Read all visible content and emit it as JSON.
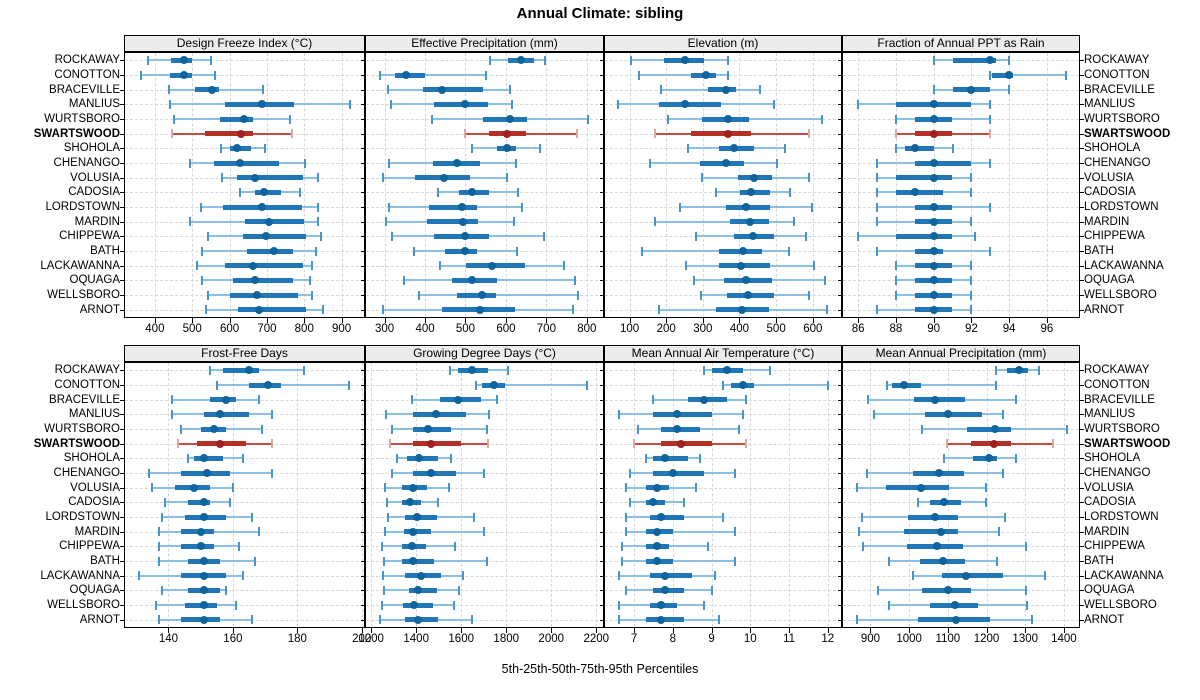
{
  "title": "Annual Climate: sibling",
  "caption": "5th-25th-50th-75th-95th Percentiles",
  "highlight_station": "SWARTSWOOD",
  "stations": [
    "ROCKAWAY",
    "CONOTTON",
    "BRACEVILLE",
    "MANLIUS",
    "WURTSBORO",
    "SWARTSWOOD",
    "SHOHOLA",
    "CHENANGO",
    "VOLUSIA",
    "CADOSIA",
    "LORDSTOWN",
    "MARDIN",
    "CHIPPEWA",
    "BATH",
    "LACKAWANNA",
    "OQUAGA",
    "WELLSBORO",
    "ARNOT"
  ],
  "colors": {
    "blue_whisker": "#8bc0e4",
    "blue_cap": "#4596cd",
    "blue_box": "#2176b5",
    "blue_dot": "#0f639f",
    "red_whisker": "#c44d42",
    "red_cap": "#dda89f",
    "red_box": "#b23127",
    "red_dot": "#a32020",
    "grid": "#d7d7d7",
    "header_bg": "#ececec",
    "border": "#000000"
  },
  "chart_data": [
    {
      "type": "dotplot-percentiles",
      "title": "Design Freeze Index (°C)",
      "percentiles": [
        5,
        25,
        50,
        75,
        95
      ],
      "domain": [
        320,
        960
      ],
      "ticks": [
        400,
        500,
        600,
        700,
        800,
        900
      ],
      "values": [
        [
          382,
          442,
          477,
          500,
          551
        ],
        [
          362,
          440,
          477,
          500,
          562
        ],
        [
          438,
          507,
          553,
          573,
          689
        ],
        [
          440,
          587,
          687,
          773,
          922
        ],
        [
          452,
          575,
          638,
          664,
          762
        ],
        [
          447,
          535,
          631,
          662,
          767
        ],
        [
          578,
          602,
          620,
          658,
          695
        ],
        [
          493,
          558,
          627,
          732,
          803
        ],
        [
          580,
          620,
          667,
          796,
          836
        ],
        [
          627,
          667,
          691,
          738,
          788
        ],
        [
          524,
          582,
          687,
          795,
          838
        ],
        [
          493,
          640,
          705,
          800,
          838
        ],
        [
          542,
          636,
          698,
          804,
          844
        ],
        [
          527,
          646,
          720,
          769,
          831
        ],
        [
          513,
          587,
          662,
          796,
          820
        ],
        [
          527,
          609,
          667,
          769,
          815
        ],
        [
          542,
          602,
          674,
          782,
          820
        ],
        [
          536,
          622,
          680,
          804,
          849
        ]
      ]
    },
    {
      "type": "dotplot-percentiles",
      "title": "Effective Precipitation (mm)",
      "percentiles": [
        5,
        25,
        50,
        75,
        95
      ],
      "domain": [
        254,
        840
      ],
      "ticks": [
        300,
        400,
        500,
        600,
        700,
        800
      ],
      "values": [
        [
          560,
          605,
          638,
          670,
          697
        ],
        [
          288,
          326,
          353,
          400,
          551
        ],
        [
          309,
          395,
          441,
          543,
          611
        ],
        [
          315,
          422,
          498,
          556,
          615
        ],
        [
          418,
          543,
          609,
          652,
          803
        ],
        [
          498,
          557,
          603,
          650,
          776
        ],
        [
          516,
          578,
          603,
          625,
          685
        ],
        [
          312,
          419,
          479,
          537,
          625
        ],
        [
          296,
          376,
          448,
          512,
          603
        ],
        [
          433,
          483,
          516,
          559,
          631
        ],
        [
          310,
          411,
          491,
          529,
          639
        ],
        [
          304,
          405,
          493,
          532,
          619
        ],
        [
          318,
          422,
          499,
          557,
          693
        ],
        [
          372,
          450,
          498,
          529,
          627
        ],
        [
          438,
          502,
          565,
          647,
          744
        ],
        [
          348,
          466,
          516,
          578,
          771
        ],
        [
          384,
          479,
          540,
          576,
          779
        ],
        [
          296,
          442,
          535,
          623,
          767
        ]
      ]
    },
    {
      "type": "dotplot-percentiles",
      "title": "Elevation (m)",
      "percentiles": [
        5,
        25,
        50,
        75,
        95
      ],
      "domain": [
        33,
        677
      ],
      "ticks": [
        100,
        200,
        300,
        400,
        500,
        600
      ],
      "values": [
        [
          105,
          193,
          252,
          302,
          368
        ],
        [
          127,
          268,
          308,
          335,
          368
        ],
        [
          187,
          314,
          362,
          390,
          456
        ],
        [
          69,
          181,
          252,
          350,
          495
        ],
        [
          205,
          299,
          370,
          426,
          625
        ],
        [
          169,
          268,
          368,
          431,
          589
        ],
        [
          259,
          344,
          386,
          440,
          525
        ],
        [
          157,
          293,
          362,
          413,
          501
        ],
        [
          299,
          395,
          440,
          489,
          589
        ],
        [
          335,
          401,
          431,
          483,
          537
        ],
        [
          238,
          362,
          419,
          483,
          598
        ],
        [
          169,
          374,
          428,
          480,
          549
        ],
        [
          281,
          386,
          438,
          495,
          582
        ],
        [
          133,
          344,
          410,
          462,
          534
        ],
        [
          254,
          344,
          404,
          483,
          603
        ],
        [
          275,
          359,
          417,
          489,
          634
        ],
        [
          296,
          365,
          422,
          495,
          591
        ],
        [
          181,
          335,
          408,
          480,
          639
        ]
      ]
    },
    {
      "type": "dotplot-percentiles",
      "title": "Fraction of Annual PPT as Rain",
      "percentiles": [
        5,
        25,
        50,
        75,
        95
      ],
      "domain": [
        85.2,
        97.7
      ],
      "ticks": [
        86,
        88,
        90,
        92,
        94,
        96
      ],
      "values": [
        [
          90,
          91,
          93,
          93.3,
          94
        ],
        [
          93,
          93.1,
          94,
          94.2,
          97
        ],
        [
          90,
          91,
          92,
          93,
          94
        ],
        [
          86,
          88,
          90,
          92,
          93
        ],
        [
          88,
          89,
          90,
          91,
          93
        ],
        [
          88,
          89,
          90,
          91,
          93
        ],
        [
          88,
          88.5,
          89,
          90,
          91
        ],
        [
          87,
          89,
          90,
          92,
          93
        ],
        [
          87,
          88,
          90,
          91,
          92
        ],
        [
          87,
          88,
          89,
          90.5,
          92
        ],
        [
          87,
          89,
          90,
          91,
          93
        ],
        [
          87,
          89,
          90,
          91,
          92
        ],
        [
          86,
          88,
          90,
          91,
          92.2
        ],
        [
          87,
          89,
          90,
          90.5,
          93
        ],
        [
          88,
          89,
          90,
          91,
          92
        ],
        [
          88,
          89,
          90,
          91,
          92
        ],
        [
          88,
          89,
          90,
          91,
          92
        ],
        [
          87,
          89,
          90,
          91,
          92
        ]
      ]
    },
    {
      "type": "dotplot-percentiles",
      "title": "Frost-Free Days",
      "percentiles": [
        5,
        25,
        50,
        75,
        95
      ],
      "domain": [
        126.5,
        200.7
      ],
      "ticks": [
        140,
        160,
        180,
        200
      ],
      "values": [
        [
          153,
          157,
          165,
          168,
          182
        ],
        [
          155,
          165,
          171,
          175,
          196
        ],
        [
          141,
          153,
          158,
          161,
          168
        ],
        [
          141,
          151,
          156,
          165,
          172
        ],
        [
          144,
          150,
          154,
          158,
          169
        ],
        [
          143,
          149,
          156,
          164,
          172
        ],
        [
          146,
          148,
          151,
          157,
          163
        ],
        [
          134,
          144,
          152,
          159,
          172
        ],
        [
          135,
          142,
          148,
          153,
          160
        ],
        [
          139,
          146,
          151,
          153,
          159
        ],
        [
          138,
          145,
          151,
          158,
          166
        ],
        [
          137,
          144,
          150,
          154,
          168
        ],
        [
          137,
          144,
          150,
          154,
          162
        ],
        [
          137,
          146,
          151,
          156,
          167
        ],
        [
          131,
          144,
          151,
          158,
          163
        ],
        [
          138,
          146,
          151,
          156,
          158
        ],
        [
          136,
          145,
          151,
          155,
          161
        ],
        [
          137,
          144,
          151,
          156,
          166
        ]
      ]
    },
    {
      "type": "dotplot-percentiles",
      "title": "Growing Degree Days (°C)",
      "percentiles": [
        5,
        25,
        50,
        75,
        95
      ],
      "domain": [
        1177,
        2230
      ],
      "ticks": [
        1200,
        1400,
        1600,
        1800,
        2000,
        2200
      ],
      "values": [
        [
          1552,
          1585,
          1650,
          1717,
          1808
        ],
        [
          1664,
          1694,
          1747,
          1796,
          2157
        ],
        [
          1380,
          1508,
          1585,
          1688,
          1761
        ],
        [
          1266,
          1386,
          1489,
          1620,
          1723
        ],
        [
          1292,
          1386,
          1453,
          1556,
          1713
        ],
        [
          1284,
          1386,
          1464,
          1600,
          1720
        ],
        [
          1313,
          1361,
          1412,
          1497,
          1556
        ],
        [
          1292,
          1386,
          1468,
          1577,
          1703
        ],
        [
          1263,
          1336,
          1386,
          1449,
          1547
        ],
        [
          1269,
          1336,
          1371,
          1420,
          1497
        ],
        [
          1273,
          1351,
          1405,
          1493,
          1659
        ],
        [
          1263,
          1347,
          1386,
          1468,
          1703
        ],
        [
          1248,
          1336,
          1380,
          1445,
          1574
        ],
        [
          1259,
          1339,
          1386,
          1478,
          1713
        ],
        [
          1254,
          1351,
          1420,
          1512,
          1610
        ],
        [
          1259,
          1366,
          1410,
          1493,
          1591
        ],
        [
          1248,
          1342,
          1390,
          1474,
          1566
        ],
        [
          1237,
          1351,
          1410,
          1497,
          1647
        ]
      ]
    },
    {
      "type": "dotplot-percentiles",
      "title": "Mean Annual Air Temperature (°C)",
      "percentiles": [
        5,
        25,
        50,
        75,
        95
      ],
      "domain": [
        6.25,
        12.34
      ],
      "ticks": [
        7,
        8,
        9,
        10,
        11,
        12
      ],
      "values": [
        [
          8.8,
          9.0,
          9.4,
          9.8,
          10.5
        ],
        [
          9.3,
          9.5,
          9.8,
          10.1,
          12.0
        ],
        [
          7.5,
          8.4,
          8.8,
          9.4,
          9.9
        ],
        [
          6.6,
          7.5,
          8.1,
          9.0,
          9.8
        ],
        [
          7.1,
          7.7,
          8.1,
          8.7,
          9.7
        ],
        [
          7.0,
          7.7,
          8.2,
          9.0,
          9.9
        ],
        [
          7.3,
          7.5,
          7.8,
          8.4,
          8.7
        ],
        [
          6.9,
          7.5,
          8.0,
          8.8,
          9.6
        ],
        [
          6.8,
          7.3,
          7.6,
          7.9,
          8.6
        ],
        [
          6.9,
          7.3,
          7.5,
          7.8,
          8.3
        ],
        [
          6.8,
          7.4,
          7.7,
          8.3,
          9.3
        ],
        [
          6.8,
          7.3,
          7.6,
          8.0,
          9.6
        ],
        [
          6.7,
          7.3,
          7.6,
          7.9,
          8.9
        ],
        [
          6.7,
          7.3,
          7.6,
          8.0,
          9.6
        ],
        [
          6.6,
          7.4,
          7.8,
          8.5,
          9.1
        ],
        [
          6.8,
          7.5,
          7.8,
          8.3,
          9.0
        ],
        [
          6.6,
          7.4,
          7.7,
          8.1,
          8.8
        ],
        [
          6.6,
          7.3,
          7.7,
          8.3,
          9.2
        ]
      ]
    },
    {
      "type": "dotplot-percentiles",
      "title": "Mean Annual Precipitation (mm)",
      "percentiles": [
        5,
        25,
        50,
        75,
        95
      ],
      "domain": [
        829,
        1439
      ],
      "ticks": [
        900,
        1000,
        1100,
        1200,
        1300,
        1400
      ],
      "values": [
        [
          1224,
          1253,
          1284,
          1307,
          1335
        ],
        [
          943,
          956,
          986,
          1030,
          1224
        ],
        [
          893,
          1013,
          1067,
          1144,
          1277
        ],
        [
          909,
          1041,
          1101,
          1187,
          1243
        ],
        [
          1033,
          1150,
          1221,
          1262,
          1407
        ],
        [
          1097,
          1159,
          1219,
          1262,
          1373
        ],
        [
          1090,
          1164,
          1207,
          1226,
          1275
        ],
        [
          890,
          1011,
          1078,
          1142,
          1243
        ],
        [
          864,
          939,
          1030,
          1104,
          1198
        ],
        [
          1022,
          1053,
          1089,
          1133,
          1198
        ],
        [
          879,
          996,
          1067,
          1127,
          1247
        ],
        [
          870,
          986,
          1082,
          1125,
          1232
        ],
        [
          881,
          994,
          1073,
          1138,
          1301
        ],
        [
          947,
          1029,
          1087,
          1144,
          1227
        ],
        [
          1010,
          1084,
          1147,
          1243,
          1352
        ],
        [
          919,
          1033,
          1101,
          1159,
          1301
        ],
        [
          947,
          1053,
          1119,
          1178,
          1304
        ],
        [
          864,
          1024,
          1121,
          1210,
          1318
        ]
      ]
    }
  ]
}
